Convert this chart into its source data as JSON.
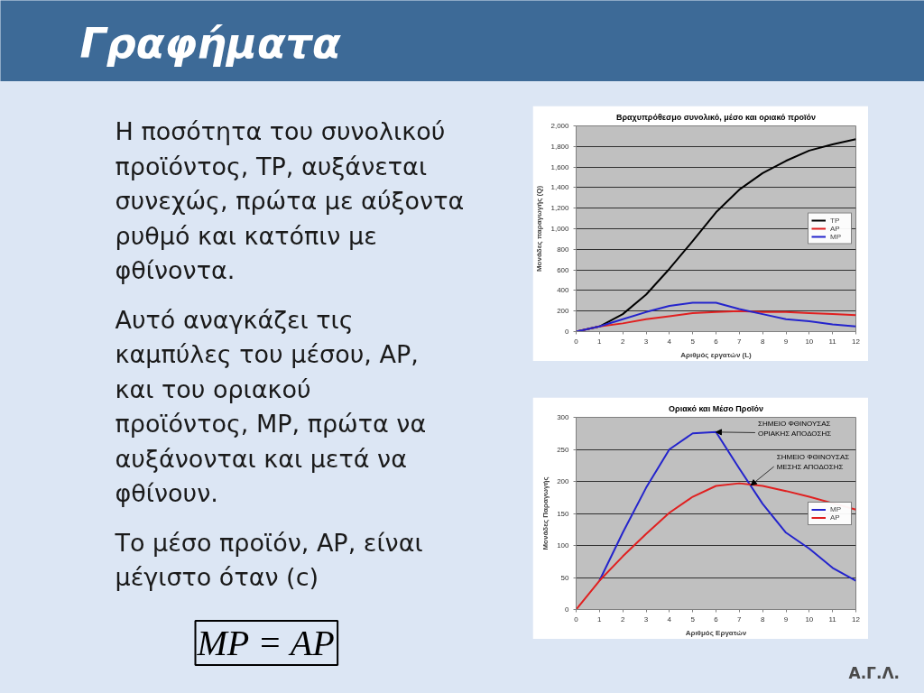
{
  "chart_data": [
    {
      "type": "other",
      "title": "Γραφήματα",
      "annotations": [
        "Η ποσότητα του συνολικού προϊόντος, TP, αυξάνεται συνεχώς, πρώτα με αύξοντα ρυθμό και κατόπιν με φθίνοντα.",
        "Αυτό αναγκάζει τις καμπύλες του μέσου, AP, και του οριακού προϊόντος, MP, πρώτα να αυξάνονται και μετά να φθίνουν.",
        "Το μέσο προϊόν, AP, είναι μέγιστο όταν (c)",
        "MP = AP",
        "Α.Γ.Λ."
      ]
    },
    {
      "type": "line",
      "title": "Βραχυπρόθεσμο συνολικό, μέσο και οριακό προϊόν",
      "xlabel": "Αριθμός εργατών (L)",
      "ylabel": "Μονάδες παραγωγής (Q)",
      "x": [
        0,
        1,
        2,
        3,
        4,
        5,
        6,
        7,
        8,
        9,
        10,
        11,
        12
      ],
      "xlim": [
        0,
        12
      ],
      "xticks": [
        0,
        1,
        2,
        3,
        4,
        5,
        6,
        7,
        8,
        9,
        10,
        11,
        12
      ],
      "ylim": [
        0,
        2000
      ],
      "yticks": [
        0,
        200,
        400,
        600,
        800,
        {
          "value": 1000,
          "label": "1,000"
        },
        {
          "value": 1200,
          "label": "1,200"
        },
        {
          "value": 1400,
          "label": "1,400"
        },
        {
          "value": 1600,
          "label": "1,600"
        },
        {
          "value": 1800,
          "label": "1,800"
        },
        {
          "value": 2000,
          "label": "2,000"
        }
      ],
      "grid": "y",
      "legend": "right",
      "series": [
        {
          "name": "TP",
          "color": "#000000",
          "values": [
            0,
            50,
            170,
            360,
            610,
            880,
            1160,
            1380,
            1540,
            1660,
            1760,
            1820,
            1870
          ]
        },
        {
          "name": "AP",
          "color": "#e02020",
          "values": [
            0,
            50,
            80,
            120,
            150,
            180,
            190,
            200,
            190,
            190,
            180,
            170,
            160
          ]
        },
        {
          "name": "MP",
          "color": "#2424cc",
          "values": [
            0,
            50,
            120,
            190,
            250,
            280,
            280,
            220,
            170,
            120,
            100,
            70,
            50
          ]
        }
      ]
    },
    {
      "type": "line",
      "title": "Οριακό και Μέσο Προϊόν",
      "xlabel": "Αριθμός Εργατών",
      "ylabel": "Μονάδες Παραγωγής",
      "x": [
        0,
        1,
        2,
        3,
        4,
        5,
        6,
        7,
        8,
        9,
        10,
        11,
        12
      ],
      "xlim": [
        0,
        12
      ],
      "xticks": [
        0,
        1,
        2,
        3,
        4,
        5,
        6,
        7,
        8,
        9,
        10,
        11,
        12
      ],
      "ylim": [
        0,
        300
      ],
      "yticks": [
        0,
        50,
        100,
        150,
        200,
        250,
        300
      ],
      "grid": "y",
      "legend": "right",
      "series": [
        {
          "name": "MP",
          "color": "#2424cc",
          "values": [
            null,
            45,
            120,
            190,
            250,
            275,
            277,
            220,
            165,
            120,
            95,
            65,
            45
          ]
        },
        {
          "name": "AP",
          "color": "#e02020",
          "values": [
            0,
            45,
            83,
            118,
            151,
            176,
            193,
            197,
            193,
            185,
            176,
            166,
            156
          ]
        }
      ],
      "annotations": [
        {
          "text": "ΣΗΜΕΙΟ ΦΘΙΝΟΥΣΑΣ ΟΡΙΑΚΗΣ ΑΠΟΔΟΣΗΣ",
          "x": 6,
          "y": 277
        },
        {
          "text": "ΣΗΜΕΙΟ ΦΘΙΝΟΥΣΑΣ ΜΕΣΗΣ ΑΠΟΔΟΣΗΣ",
          "x": 7.5,
          "y": 194
        }
      ]
    }
  ]
}
